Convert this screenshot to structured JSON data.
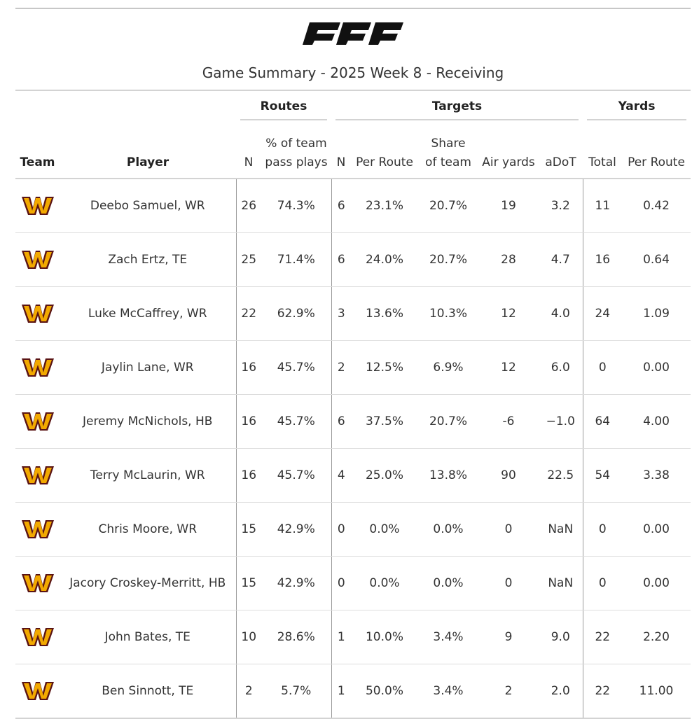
{
  "brand": {
    "logo_text": "PFF"
  },
  "title": "Game Summary - 2025 Week 8 - Receiving",
  "spanners": {
    "routes": "Routes",
    "targets": "Targets",
    "yards": "Yards"
  },
  "columns": {
    "team": "Team",
    "player": "Player",
    "routes_n": "N",
    "routes_pct_line1": "% of team",
    "routes_pct_line2": "pass plays",
    "targets_n": "N",
    "targets_per_route": "Per Route",
    "share_line1": "Share",
    "share_line2": "of team",
    "air_yards": "Air yards",
    "adot": "aDoT",
    "yards_total": "Total",
    "yards_per_route": "Per Route"
  },
  "colors": {
    "logo_fill": "#f2a900",
    "logo_outline": "#5a1414",
    "rule": "#d3d3d3"
  },
  "rows": [
    {
      "team_icon": "commanders-logo-icon",
      "player": "Deebo Samuel, WR",
      "routes_n": "26",
      "routes_pct": "74.3%",
      "targets_n": "6",
      "targets_per_route": "23.1%",
      "share": "20.7%",
      "air_yards": "19",
      "adot": "3.2",
      "yards_total": "11",
      "yards_per_route": "0.42"
    },
    {
      "team_icon": "commanders-logo-icon",
      "player": "Zach Ertz, TE",
      "routes_n": "25",
      "routes_pct": "71.4%",
      "targets_n": "6",
      "targets_per_route": "24.0%",
      "share": "20.7%",
      "air_yards": "28",
      "adot": "4.7",
      "yards_total": "16",
      "yards_per_route": "0.64"
    },
    {
      "team_icon": "commanders-logo-icon",
      "player": "Luke McCaffrey, WR",
      "routes_n": "22",
      "routes_pct": "62.9%",
      "targets_n": "3",
      "targets_per_route": "13.6%",
      "share": "10.3%",
      "air_yards": "12",
      "adot": "4.0",
      "yards_total": "24",
      "yards_per_route": "1.09"
    },
    {
      "team_icon": "commanders-logo-icon",
      "player": "Jaylin Lane, WR",
      "routes_n": "16",
      "routes_pct": "45.7%",
      "targets_n": "2",
      "targets_per_route": "12.5%",
      "share": "6.9%",
      "air_yards": "12",
      "adot": "6.0",
      "yards_total": "0",
      "yards_per_route": "0.00"
    },
    {
      "team_icon": "commanders-logo-icon",
      "player": "Jeremy McNichols, HB",
      "routes_n": "16",
      "routes_pct": "45.7%",
      "targets_n": "6",
      "targets_per_route": "37.5%",
      "share": "20.7%",
      "air_yards": "-6",
      "adot": "−1.0",
      "yards_total": "64",
      "yards_per_route": "4.00"
    },
    {
      "team_icon": "commanders-logo-icon",
      "player": "Terry McLaurin, WR",
      "routes_n": "16",
      "routes_pct": "45.7%",
      "targets_n": "4",
      "targets_per_route": "25.0%",
      "share": "13.8%",
      "air_yards": "90",
      "adot": "22.5",
      "yards_total": "54",
      "yards_per_route": "3.38"
    },
    {
      "team_icon": "commanders-logo-icon",
      "player": "Chris Moore, WR",
      "routes_n": "15",
      "routes_pct": "42.9%",
      "targets_n": "0",
      "targets_per_route": "0.0%",
      "share": "0.0%",
      "air_yards": "0",
      "adot": "NaN",
      "yards_total": "0",
      "yards_per_route": "0.00"
    },
    {
      "team_icon": "commanders-logo-icon",
      "player": "Jacory Croskey-Merritt, HB",
      "routes_n": "15",
      "routes_pct": "42.9%",
      "targets_n": "0",
      "targets_per_route": "0.0%",
      "share": "0.0%",
      "air_yards": "0",
      "adot": "NaN",
      "yards_total": "0",
      "yards_per_route": "0.00"
    },
    {
      "team_icon": "commanders-logo-icon",
      "player": "John Bates, TE",
      "routes_n": "10",
      "routes_pct": "28.6%",
      "targets_n": "1",
      "targets_per_route": "10.0%",
      "share": "3.4%",
      "air_yards": "9",
      "adot": "9.0",
      "yards_total": "22",
      "yards_per_route": "2.20"
    },
    {
      "team_icon": "commanders-logo-icon",
      "player": "Ben Sinnott, TE",
      "routes_n": "2",
      "routes_pct": "5.7%",
      "targets_n": "1",
      "targets_per_route": "50.0%",
      "share": "3.4%",
      "air_yards": "2",
      "adot": "2.0",
      "yards_total": "22",
      "yards_per_route": "11.00"
    }
  ]
}
